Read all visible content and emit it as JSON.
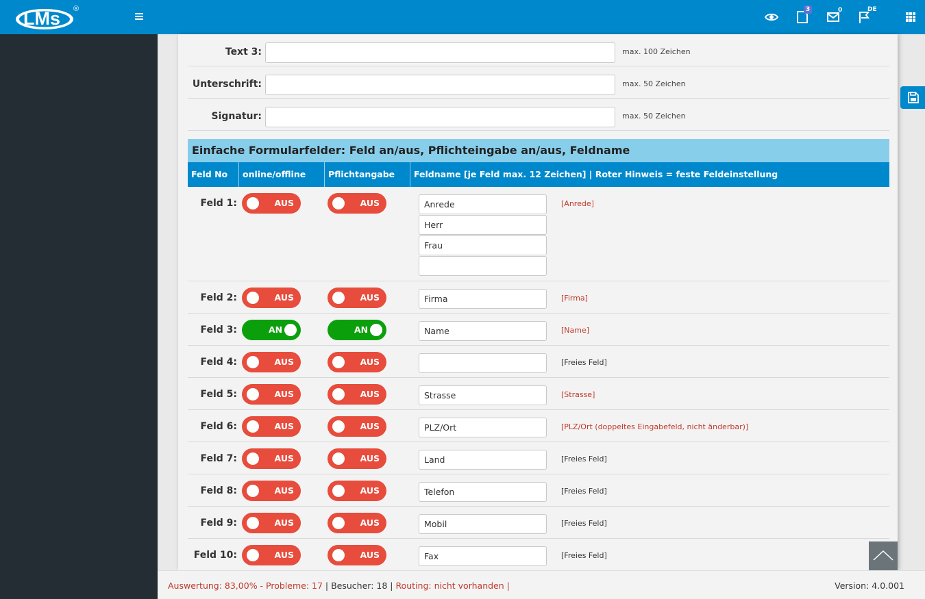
{
  "header": {
    "logo_text": "LMs",
    "logo_mark": "®",
    "tasks_badge": "3",
    "mail_badge": "0",
    "language": "DE"
  },
  "text_fields": [
    {
      "label": "Text 3:",
      "value": "",
      "hint": "max. 100 Zeichen"
    },
    {
      "label": "Unterschrift:",
      "value": "",
      "hint": "max. 50 Zeichen"
    },
    {
      "label": "Signatur:",
      "value": "",
      "hint": "max. 50 Zeichen"
    }
  ],
  "section": {
    "title": "Einfache Formularfelder: Feld an/aus, Pflichteingabe an/aus, Feldname"
  },
  "columns": {
    "feld_no": "Feld No",
    "online": "online/offline",
    "pflicht": "Pflichtangabe",
    "feldname": "Feldname [je Feld max. 12 Zeichen] | Roter Hinweis = feste Feldeinstellung"
  },
  "toggle_labels": {
    "on": "AN",
    "off": "AUS"
  },
  "fields": [
    {
      "label": "Feld 1:",
      "online": "AUS",
      "pflicht": "AUS",
      "names": [
        "Anrede",
        "Herr",
        "Frau",
        ""
      ],
      "hint": "[Anrede]",
      "hint_color": "red"
    },
    {
      "label": "Feld 2:",
      "online": "AUS",
      "pflicht": "AUS",
      "names": [
        "Firma"
      ],
      "hint": "[Firma]",
      "hint_color": "red"
    },
    {
      "label": "Feld 3:",
      "online": "AN",
      "pflicht": "AN",
      "names": [
        "Name"
      ],
      "hint": "[Name]",
      "hint_color": "red"
    },
    {
      "label": "Feld 4:",
      "online": "AUS",
      "pflicht": "AUS",
      "names": [
        ""
      ],
      "hint": "[Freies Feld]",
      "hint_color": "dark"
    },
    {
      "label": "Feld 5:",
      "online": "AUS",
      "pflicht": "AUS",
      "names": [
        "Strasse"
      ],
      "hint": "[Strasse]",
      "hint_color": "red"
    },
    {
      "label": "Feld 6:",
      "online": "AUS",
      "pflicht": "AUS",
      "names": [
        "PLZ/Ort"
      ],
      "hint": "[PLZ/Ort (doppeltes Eingabefeld, nicht änderbar)]",
      "hint_color": "red"
    },
    {
      "label": "Feld 7:",
      "online": "AUS",
      "pflicht": "AUS",
      "names": [
        "Land"
      ],
      "hint": "[Freies Feld]",
      "hint_color": "dark"
    },
    {
      "label": "Feld 8:",
      "online": "AUS",
      "pflicht": "AUS",
      "names": [
        "Telefon"
      ],
      "hint": "[Freies Feld]",
      "hint_color": "dark"
    },
    {
      "label": "Feld 9:",
      "online": "AUS",
      "pflicht": "AUS",
      "names": [
        "Mobil"
      ],
      "hint": "[Freies Feld]",
      "hint_color": "dark"
    },
    {
      "label": "Feld 10:",
      "online": "AUS",
      "pflicht": "AUS",
      "names": [
        "Fax"
      ],
      "hint": "[Freies Feld]",
      "hint_color": "dark"
    }
  ],
  "footer": {
    "auswertung": "Auswertung: 83,00% - Probleme: 17",
    "sep1": " | ",
    "besucher": "Besucher: 18",
    "sep2": " | ",
    "routing": "Routing: nicht vorhanden",
    "sep3": " |",
    "version": "Version: 4.0.001"
  },
  "colors": {
    "brand_blue": "#0088cc",
    "sidebar": "#232d33",
    "section_light_blue": "#87ceeb",
    "toggle_off": "#e74c3c",
    "toggle_on": "#0ba00b",
    "hint_red": "#c0392b"
  }
}
